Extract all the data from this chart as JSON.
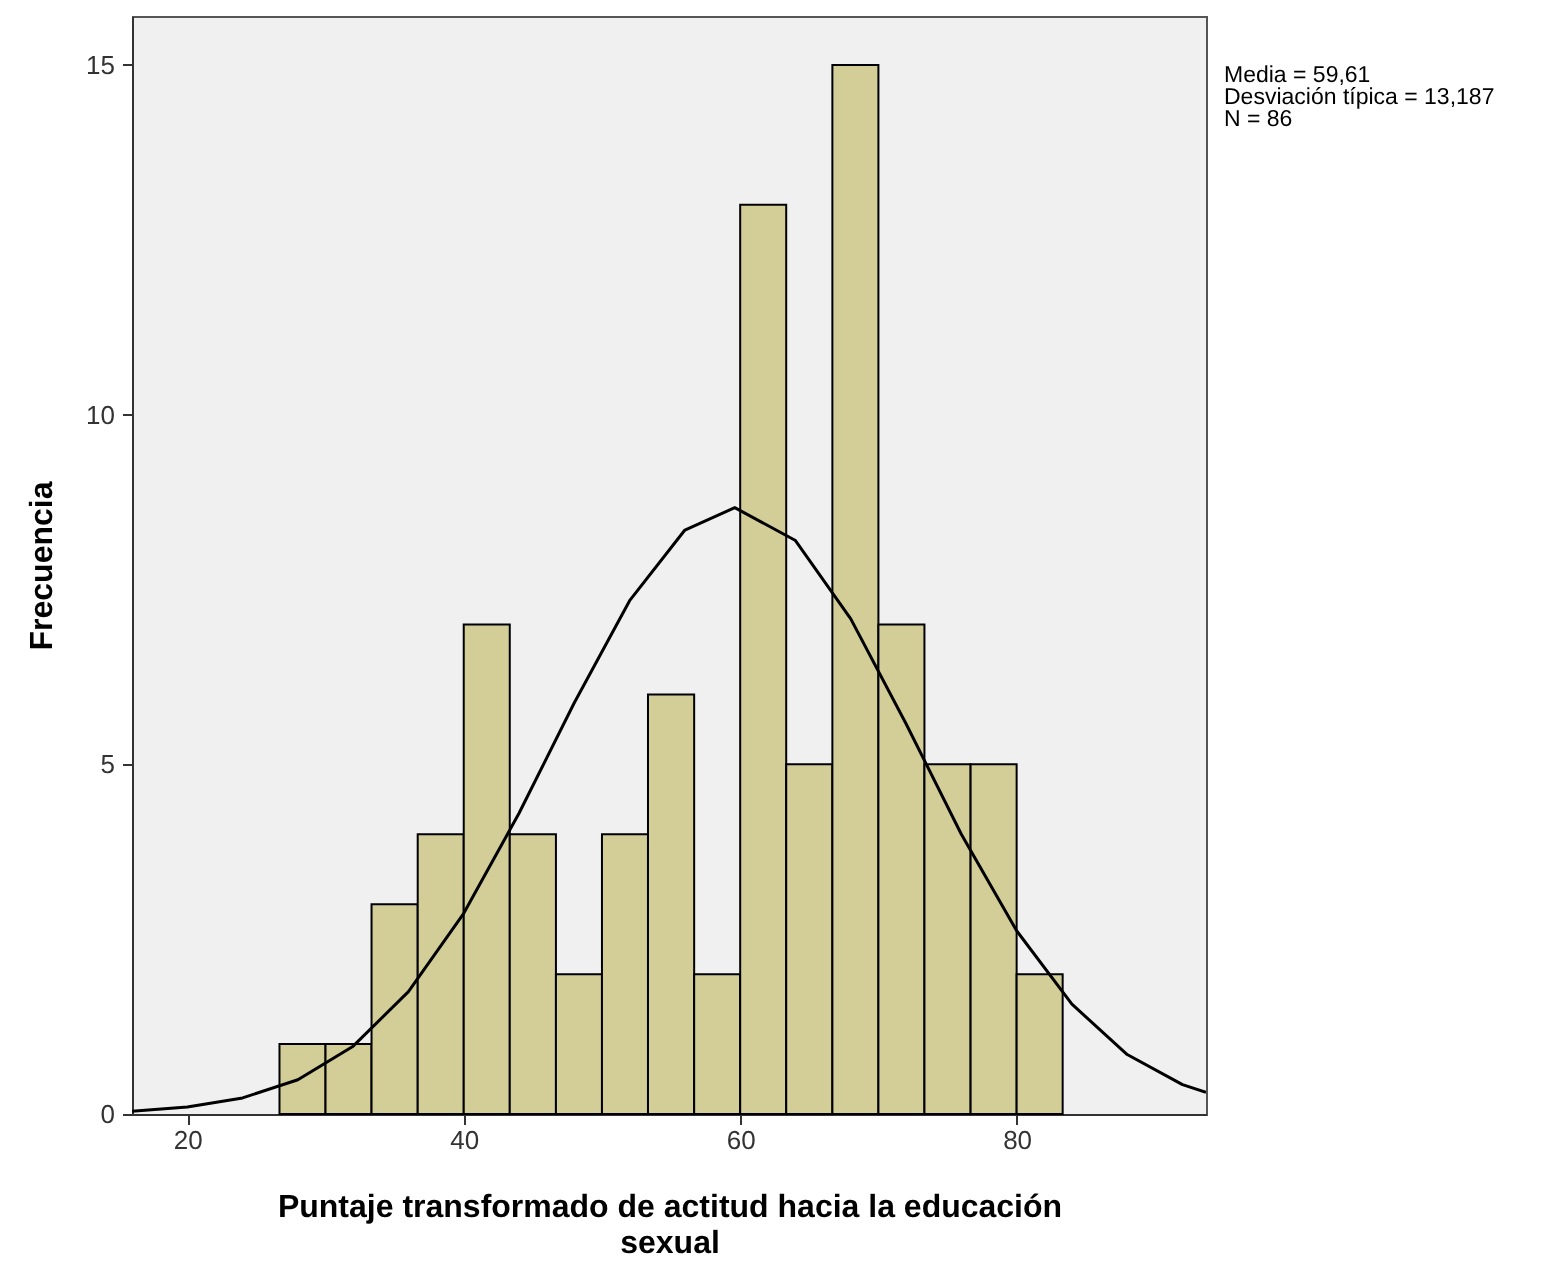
{
  "chart_data": {
    "type": "histogram",
    "xlabel": "Puntaje transformado de actitud hacia la educación sexual",
    "ylabel": "Frecuencia",
    "bins": [
      26.67,
      30,
      33.33,
      36.67,
      40,
      43.33,
      46.67,
      50,
      53.33,
      56.67,
      60,
      63.33,
      66.67,
      70,
      73.33,
      76.67,
      80,
      83.33
    ],
    "values": [
      1,
      1,
      3,
      4,
      7,
      4,
      2,
      4,
      6,
      2,
      13,
      5,
      15,
      7,
      5,
      5,
      2
    ],
    "color": "#d3ce97",
    "series": [
      {
        "type": "line",
        "color": "#000000",
        "x": [
          16,
          20,
          24,
          28,
          32,
          36,
          40,
          44,
          48,
          52,
          56,
          59.61,
          64,
          68,
          72,
          76,
          80,
          84,
          88,
          92,
          93.7
        ],
        "values": [
          0.04,
          0.1,
          0.23,
          0.49,
          0.97,
          1.75,
          2.87,
          4.3,
          5.88,
          7.34,
          8.35,
          8.67,
          8.2,
          7.08,
          5.58,
          4.0,
          2.62,
          1.57,
          0.85,
          0.42,
          0.31
        ]
      }
    ],
    "xlim": [
      16,
      93.7
    ],
    "xticks": [
      20,
      40,
      60,
      80
    ],
    "ylim": [
      0,
      15.7
    ],
    "yticks": [
      0,
      5,
      10,
      15
    ],
    "grid": false,
    "annotations": [
      "Media = 59,61",
      "Desviación típica = 13,187",
      "N = 86"
    ]
  }
}
